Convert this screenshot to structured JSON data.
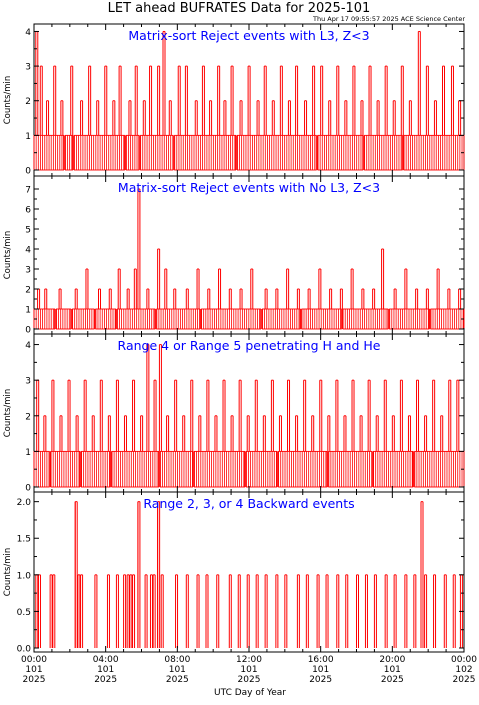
{
  "header": {
    "title": "LET ahead BUFRATES Data for 2025-101",
    "timestamp": "Thu Apr 17 09:55:57 2025 ACE Science Center"
  },
  "x_axis": {
    "label": "UTC Day of Year",
    "ticks": [
      {
        "time": "00:00",
        "day": "101",
        "year": "2025"
      },
      {
        "time": "04:00",
        "day": "101",
        "year": "2025"
      },
      {
        "time": "08:00",
        "day": "101",
        "year": "2025"
      },
      {
        "time": "12:00",
        "day": "101",
        "year": "2025"
      },
      {
        "time": "16:00",
        "day": "101",
        "year": "2025"
      },
      {
        "time": "20:00",
        "day": "101",
        "year": "2025"
      },
      {
        "time": "00:00",
        "day": "102",
        "year": "2025"
      }
    ]
  },
  "colors": {
    "trace": "#ff0000",
    "panel_title": "#0000ff",
    "axis": "#000000"
  },
  "chart_data": [
    {
      "type": "bar",
      "title": "Matrix-sort Reject events with L3, Z<3",
      "ylabel": "Counts/min",
      "ylim": [
        0,
        4.1
      ],
      "yticks": [
        "0",
        "1",
        "2",
        "3",
        "4"
      ],
      "x_unit": "hours of day 101 (2025)",
      "xlim": [
        0,
        24
      ],
      "baseline_count": 1,
      "baseline_gaps_hours": [
        1.7,
        2.2,
        5.1,
        5.9,
        7.8,
        11.3,
        15.8,
        18.4,
        20.6
      ],
      "events": [
        {
          "x": 0.1,
          "y": 4
        },
        {
          "x": 0.35,
          "y": 3
        },
        {
          "x": 0.7,
          "y": 2
        },
        {
          "x": 1.1,
          "y": 3
        },
        {
          "x": 1.5,
          "y": 2
        },
        {
          "x": 2.05,
          "y": 3
        },
        {
          "x": 2.6,
          "y": 2
        },
        {
          "x": 3.05,
          "y": 3
        },
        {
          "x": 3.5,
          "y": 2
        },
        {
          "x": 3.95,
          "y": 3
        },
        {
          "x": 4.4,
          "y": 2
        },
        {
          "x": 4.75,
          "y": 3
        },
        {
          "x": 5.3,
          "y": 2
        },
        {
          "x": 5.65,
          "y": 3
        },
        {
          "x": 6.1,
          "y": 2
        },
        {
          "x": 6.45,
          "y": 3
        },
        {
          "x": 6.9,
          "y": 3
        },
        {
          "x": 7.2,
          "y": 4
        },
        {
          "x": 7.55,
          "y": 2
        },
        {
          "x": 8.05,
          "y": 3
        },
        {
          "x": 8.45,
          "y": 3
        },
        {
          "x": 9.0,
          "y": 2
        },
        {
          "x": 9.4,
          "y": 3
        },
        {
          "x": 9.8,
          "y": 2
        },
        {
          "x": 10.25,
          "y": 3
        },
        {
          "x": 10.6,
          "y": 2
        },
        {
          "x": 11.0,
          "y": 3
        },
        {
          "x": 11.5,
          "y": 2
        },
        {
          "x": 11.95,
          "y": 3
        },
        {
          "x": 12.45,
          "y": 2
        },
        {
          "x": 12.85,
          "y": 3
        },
        {
          "x": 13.3,
          "y": 2
        },
        {
          "x": 13.75,
          "y": 3
        },
        {
          "x": 14.2,
          "y": 2
        },
        {
          "x": 14.6,
          "y": 3
        },
        {
          "x": 15.1,
          "y": 2
        },
        {
          "x": 15.55,
          "y": 3
        },
        {
          "x": 16.0,
          "y": 3
        },
        {
          "x": 16.45,
          "y": 2
        },
        {
          "x": 16.9,
          "y": 3
        },
        {
          "x": 17.35,
          "y": 2
        },
        {
          "x": 17.8,
          "y": 3
        },
        {
          "x": 18.25,
          "y": 2
        },
        {
          "x": 18.7,
          "y": 3
        },
        {
          "x": 19.15,
          "y": 2
        },
        {
          "x": 19.6,
          "y": 3
        },
        {
          "x": 20.05,
          "y": 2
        },
        {
          "x": 20.5,
          "y": 3
        },
        {
          "x": 20.95,
          "y": 2
        },
        {
          "x": 21.45,
          "y": 4
        },
        {
          "x": 21.9,
          "y": 3
        },
        {
          "x": 22.35,
          "y": 2
        },
        {
          "x": 22.8,
          "y": 3
        },
        {
          "x": 23.3,
          "y": 3
        },
        {
          "x": 23.7,
          "y": 2
        }
      ]
    },
    {
      "type": "bar",
      "title": "Matrix-sort Reject events with No L3, Z<3",
      "ylabel": "Counts/min",
      "ylim": [
        0,
        7.2
      ],
      "yticks": [
        "0",
        "1",
        "2",
        "3",
        "4",
        "5",
        "6",
        "7"
      ],
      "x_unit": "hours of day 101 (2025)",
      "xlim": [
        0,
        24
      ],
      "baseline_count": 1,
      "baseline_gaps_hours": [
        1.2,
        2.1,
        3.4,
        4.6,
        6.8,
        9.3,
        12.7,
        14.9,
        17.2,
        19.8,
        22.1
      ],
      "events": [
        {
          "x": 0.2,
          "y": 2
        },
        {
          "x": 0.6,
          "y": 2
        },
        {
          "x": 1.4,
          "y": 2
        },
        {
          "x": 2.3,
          "y": 2
        },
        {
          "x": 2.9,
          "y": 3
        },
        {
          "x": 3.6,
          "y": 2
        },
        {
          "x": 4.2,
          "y": 2
        },
        {
          "x": 4.7,
          "y": 3
        },
        {
          "x": 5.2,
          "y": 2
        },
        {
          "x": 5.6,
          "y": 3
        },
        {
          "x": 5.8,
          "y": 7
        },
        {
          "x": 6.3,
          "y": 2
        },
        {
          "x": 6.9,
          "y": 4
        },
        {
          "x": 7.3,
          "y": 3
        },
        {
          "x": 7.8,
          "y": 2
        },
        {
          "x": 8.5,
          "y": 2
        },
        {
          "x": 9.1,
          "y": 3
        },
        {
          "x": 9.7,
          "y": 2
        },
        {
          "x": 10.3,
          "y": 3
        },
        {
          "x": 10.9,
          "y": 2
        },
        {
          "x": 11.5,
          "y": 2
        },
        {
          "x": 12.1,
          "y": 3
        },
        {
          "x": 12.9,
          "y": 2
        },
        {
          "x": 13.5,
          "y": 2
        },
        {
          "x": 14.1,
          "y": 3
        },
        {
          "x": 14.7,
          "y": 2
        },
        {
          "x": 15.3,
          "y": 2
        },
        {
          "x": 15.9,
          "y": 3
        },
        {
          "x": 16.5,
          "y": 2
        },
        {
          "x": 17.1,
          "y": 2
        },
        {
          "x": 17.7,
          "y": 3
        },
        {
          "x": 18.3,
          "y": 2
        },
        {
          "x": 18.9,
          "y": 2
        },
        {
          "x": 19.4,
          "y": 4
        },
        {
          "x": 20.1,
          "y": 2
        },
        {
          "x": 20.7,
          "y": 3
        },
        {
          "x": 21.3,
          "y": 2
        },
        {
          "x": 21.9,
          "y": 2
        },
        {
          "x": 22.5,
          "y": 3
        },
        {
          "x": 23.1,
          "y": 2
        },
        {
          "x": 23.7,
          "y": 2
        }
      ]
    },
    {
      "type": "bar",
      "title": "Range 4 or Range 5 penetrating H and He",
      "ylabel": "Counts/min",
      "ylim": [
        0,
        4.1
      ],
      "yticks": [
        "0",
        "1",
        "2",
        "3",
        "4"
      ],
      "x_unit": "hours of day 101 (2025)",
      "xlim": [
        0,
        24
      ],
      "baseline_count": 1,
      "baseline_gaps_hours": [
        0.9,
        2.6,
        4.3,
        7.0,
        8.9,
        11.8,
        13.6,
        16.4,
        18.9,
        21.2
      ],
      "events": [
        {
          "x": 0.15,
          "y": 3
        },
        {
          "x": 0.55,
          "y": 2
        },
        {
          "x": 1.0,
          "y": 3
        },
        {
          "x": 1.45,
          "y": 2
        },
        {
          "x": 1.9,
          "y": 3
        },
        {
          "x": 2.35,
          "y": 2
        },
        {
          "x": 2.8,
          "y": 3
        },
        {
          "x": 3.25,
          "y": 2
        },
        {
          "x": 3.7,
          "y": 3
        },
        {
          "x": 4.15,
          "y": 2
        },
        {
          "x": 4.6,
          "y": 3
        },
        {
          "x": 5.05,
          "y": 2
        },
        {
          "x": 5.5,
          "y": 3
        },
        {
          "x": 5.95,
          "y": 2
        },
        {
          "x": 6.3,
          "y": 4
        },
        {
          "x": 6.7,
          "y": 3
        },
        {
          "x": 7.0,
          "y": 4
        },
        {
          "x": 7.4,
          "y": 2
        },
        {
          "x": 7.85,
          "y": 3
        },
        {
          "x": 8.3,
          "y": 2
        },
        {
          "x": 8.75,
          "y": 3
        },
        {
          "x": 9.2,
          "y": 2
        },
        {
          "x": 9.65,
          "y": 3
        },
        {
          "x": 10.1,
          "y": 2
        },
        {
          "x": 10.55,
          "y": 3
        },
        {
          "x": 11.0,
          "y": 2
        },
        {
          "x": 11.45,
          "y": 3
        },
        {
          "x": 11.9,
          "y": 2
        },
        {
          "x": 12.35,
          "y": 3
        },
        {
          "x": 12.8,
          "y": 2
        },
        {
          "x": 13.25,
          "y": 3
        },
        {
          "x": 13.7,
          "y": 2
        },
        {
          "x": 14.15,
          "y": 3
        },
        {
          "x": 14.6,
          "y": 2
        },
        {
          "x": 15.05,
          "y": 3
        },
        {
          "x": 15.5,
          "y": 2
        },
        {
          "x": 15.95,
          "y": 3
        },
        {
          "x": 16.4,
          "y": 2
        },
        {
          "x": 16.85,
          "y": 3
        },
        {
          "x": 17.3,
          "y": 2
        },
        {
          "x": 17.75,
          "y": 3
        },
        {
          "x": 18.2,
          "y": 2
        },
        {
          "x": 18.65,
          "y": 3
        },
        {
          "x": 19.1,
          "y": 2
        },
        {
          "x": 19.55,
          "y": 3
        },
        {
          "x": 20.0,
          "y": 2
        },
        {
          "x": 20.45,
          "y": 3
        },
        {
          "x": 20.9,
          "y": 2
        },
        {
          "x": 21.35,
          "y": 3
        },
        {
          "x": 21.8,
          "y": 2
        },
        {
          "x": 22.25,
          "y": 3
        },
        {
          "x": 22.7,
          "y": 2
        },
        {
          "x": 23.15,
          "y": 3
        },
        {
          "x": 23.6,
          "y": 3
        }
      ]
    },
    {
      "type": "bar",
      "title": "Range 2, 3, or 4 Backward events",
      "ylabel": "Counts/min",
      "ylim": [
        0,
        2.05
      ],
      "yticks": [
        "0.0",
        "0.5",
        "1.0",
        "1.5",
        "2.0"
      ],
      "x_unit": "hours of day 101 (2025)",
      "xlim": [
        0,
        24
      ],
      "baseline_count": 0,
      "baseline_gaps_hours": [],
      "events": [
        {
          "x": 0.1,
          "y": 1
        },
        {
          "x": 0.25,
          "y": 1
        },
        {
          "x": 0.9,
          "y": 1
        },
        {
          "x": 1.05,
          "y": 1
        },
        {
          "x": 2.3,
          "y": 2
        },
        {
          "x": 2.45,
          "y": 1
        },
        {
          "x": 2.6,
          "y": 1
        },
        {
          "x": 3.4,
          "y": 1
        },
        {
          "x": 4.1,
          "y": 1
        },
        {
          "x": 4.6,
          "y": 1
        },
        {
          "x": 5.0,
          "y": 1
        },
        {
          "x": 5.2,
          "y": 1
        },
        {
          "x": 5.35,
          "y": 1
        },
        {
          "x": 5.5,
          "y": 1
        },
        {
          "x": 5.8,
          "y": 2
        },
        {
          "x": 6.2,
          "y": 1
        },
        {
          "x": 6.5,
          "y": 1
        },
        {
          "x": 6.65,
          "y": 1
        },
        {
          "x": 6.9,
          "y": 2
        },
        {
          "x": 7.1,
          "y": 1
        },
        {
          "x": 7.9,
          "y": 1
        },
        {
          "x": 8.5,
          "y": 1
        },
        {
          "x": 9.1,
          "y": 1
        },
        {
          "x": 9.6,
          "y": 1
        },
        {
          "x": 10.2,
          "y": 1
        },
        {
          "x": 10.9,
          "y": 1
        },
        {
          "x": 11.4,
          "y": 1
        },
        {
          "x": 11.9,
          "y": 1
        },
        {
          "x": 12.4,
          "y": 1
        },
        {
          "x": 12.9,
          "y": 1
        },
        {
          "x": 13.5,
          "y": 1
        },
        {
          "x": 14.0,
          "y": 1
        },
        {
          "x": 14.7,
          "y": 1
        },
        {
          "x": 15.2,
          "y": 1
        },
        {
          "x": 15.8,
          "y": 1
        },
        {
          "x": 16.3,
          "y": 1
        },
        {
          "x": 16.9,
          "y": 1
        },
        {
          "x": 17.4,
          "y": 1
        },
        {
          "x": 18.0,
          "y": 1
        },
        {
          "x": 18.5,
          "y": 1
        },
        {
          "x": 19.0,
          "y": 1
        },
        {
          "x": 19.6,
          "y": 1
        },
        {
          "x": 20.1,
          "y": 1
        },
        {
          "x": 20.7,
          "y": 1
        },
        {
          "x": 21.2,
          "y": 1
        },
        {
          "x": 21.6,
          "y": 2
        },
        {
          "x": 21.8,
          "y": 1
        },
        {
          "x": 22.3,
          "y": 1
        },
        {
          "x": 22.9,
          "y": 1
        },
        {
          "x": 23.4,
          "y": 1
        },
        {
          "x": 23.8,
          "y": 1
        }
      ]
    }
  ]
}
